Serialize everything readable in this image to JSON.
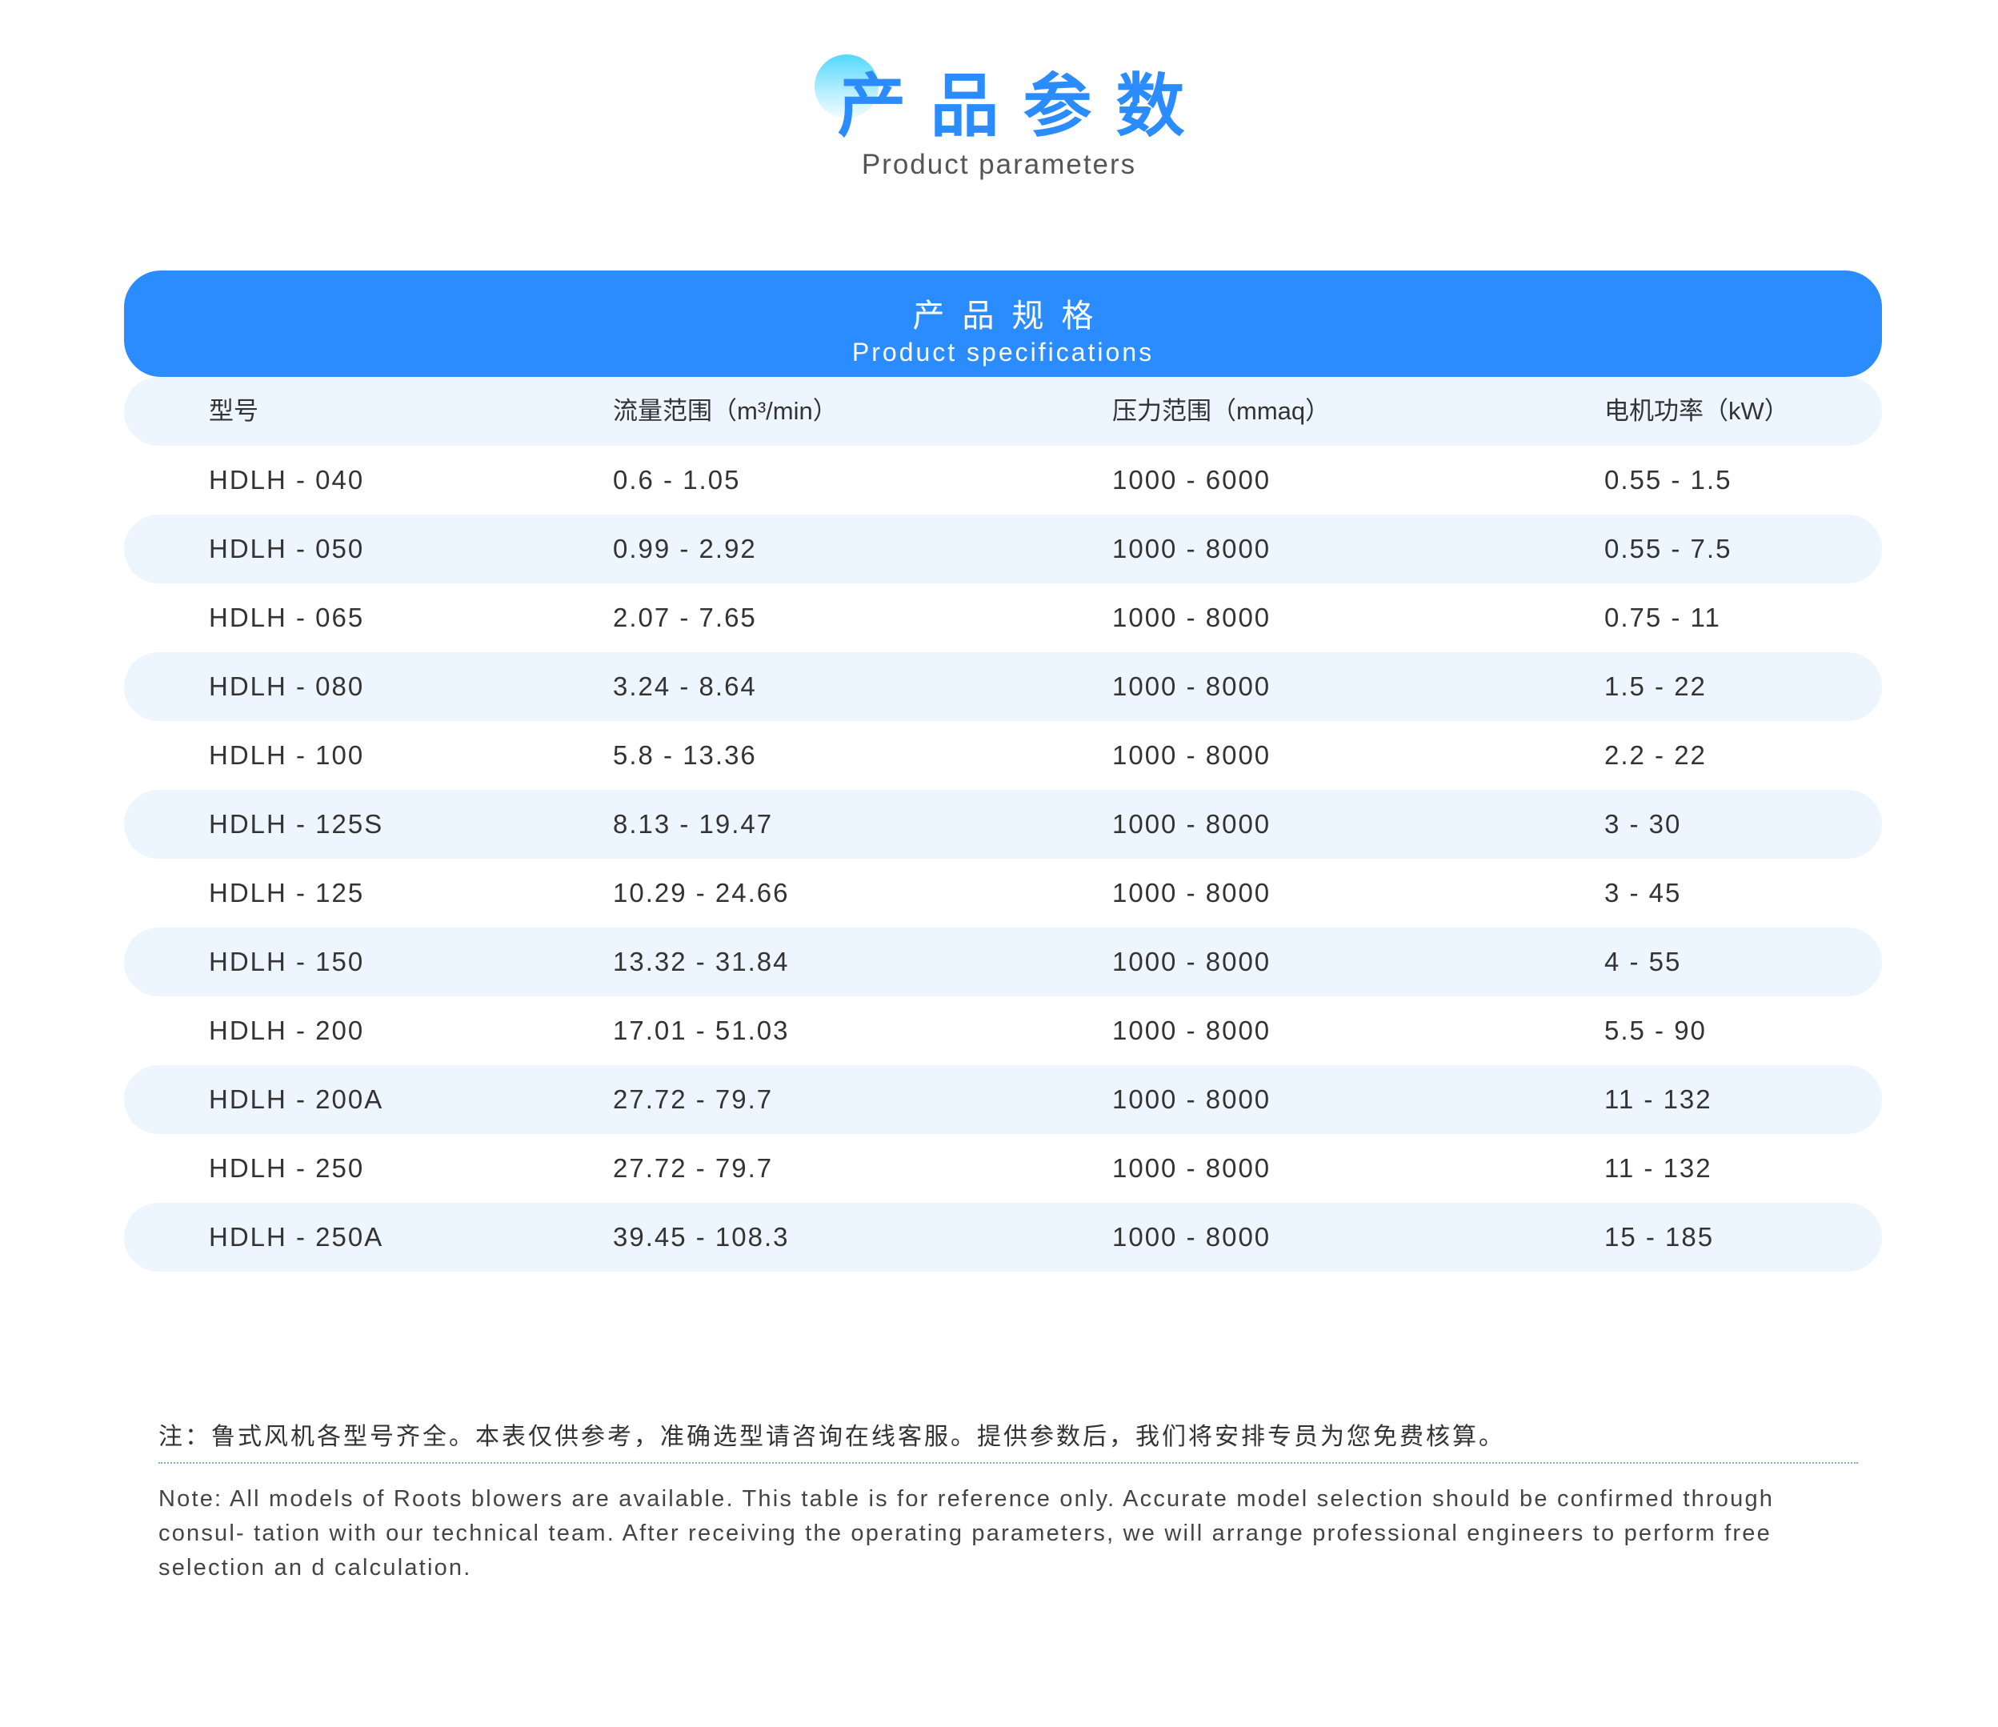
{
  "header": {
    "title": "产品参数",
    "subtitle": "Product parameters"
  },
  "banner": {
    "title": "产品规格",
    "subtitle": "Product specifications"
  },
  "table": {
    "columns": [
      "型号",
      "流量范围（m³/min）",
      "压力范围（mmaq）",
      "电机功率（kW）"
    ],
    "rows": [
      [
        "HDLH - 040",
        "0.6 - 1.05",
        "1000 - 6000",
        "0.55 - 1.5"
      ],
      [
        "HDLH - 050",
        "0.99 - 2.92",
        "1000 - 8000",
        "0.55 - 7.5"
      ],
      [
        "HDLH - 065",
        "2.07 - 7.65",
        "1000 - 8000",
        "0.75 - 11"
      ],
      [
        "HDLH - 080",
        "3.24 - 8.64",
        "1000 - 8000",
        "1.5 - 22"
      ],
      [
        "HDLH - 100",
        "5.8 - 13.36",
        "1000 - 8000",
        "2.2 - 22"
      ],
      [
        "HDLH - 125S",
        "8.13 - 19.47",
        "1000 - 8000",
        "3 - 30"
      ],
      [
        "HDLH - 125",
        "10.29 - 24.66",
        "1000 - 8000",
        "3 - 45"
      ],
      [
        "HDLH - 150",
        "13.32 - 31.84",
        "1000 - 8000",
        "4 - 55"
      ],
      [
        "HDLH - 200",
        "17.01 - 51.03",
        "1000 - 8000",
        "5.5 - 90"
      ],
      [
        "HDLH - 200A",
        "27.72 - 79.7",
        "1000 - 8000",
        "11 - 132"
      ],
      [
        "HDLH - 250",
        "27.72 - 79.7",
        "1000 - 8000",
        "11 - 132"
      ],
      [
        "HDLH - 250A",
        "39.45 - 108.3",
        "1000 - 8000",
        "15 - 185"
      ]
    ]
  },
  "notes": {
    "zh": "注：鲁式风机各型号齐全。本表仅供参考，准确选型请咨询在线客服。提供参数后，我们将安排专员为您免费核算。",
    "en": "Note: All models of Roots blowers are available. This table is for reference only. Accurate model selection should be confirmed through consul- tation with our technical team. After receiving the operating parameters, we will arrange professional engineers to perform free selection an d calculation."
  },
  "colors": {
    "accent": "#2b8cff",
    "row_alt": "#edf5fe"
  }
}
